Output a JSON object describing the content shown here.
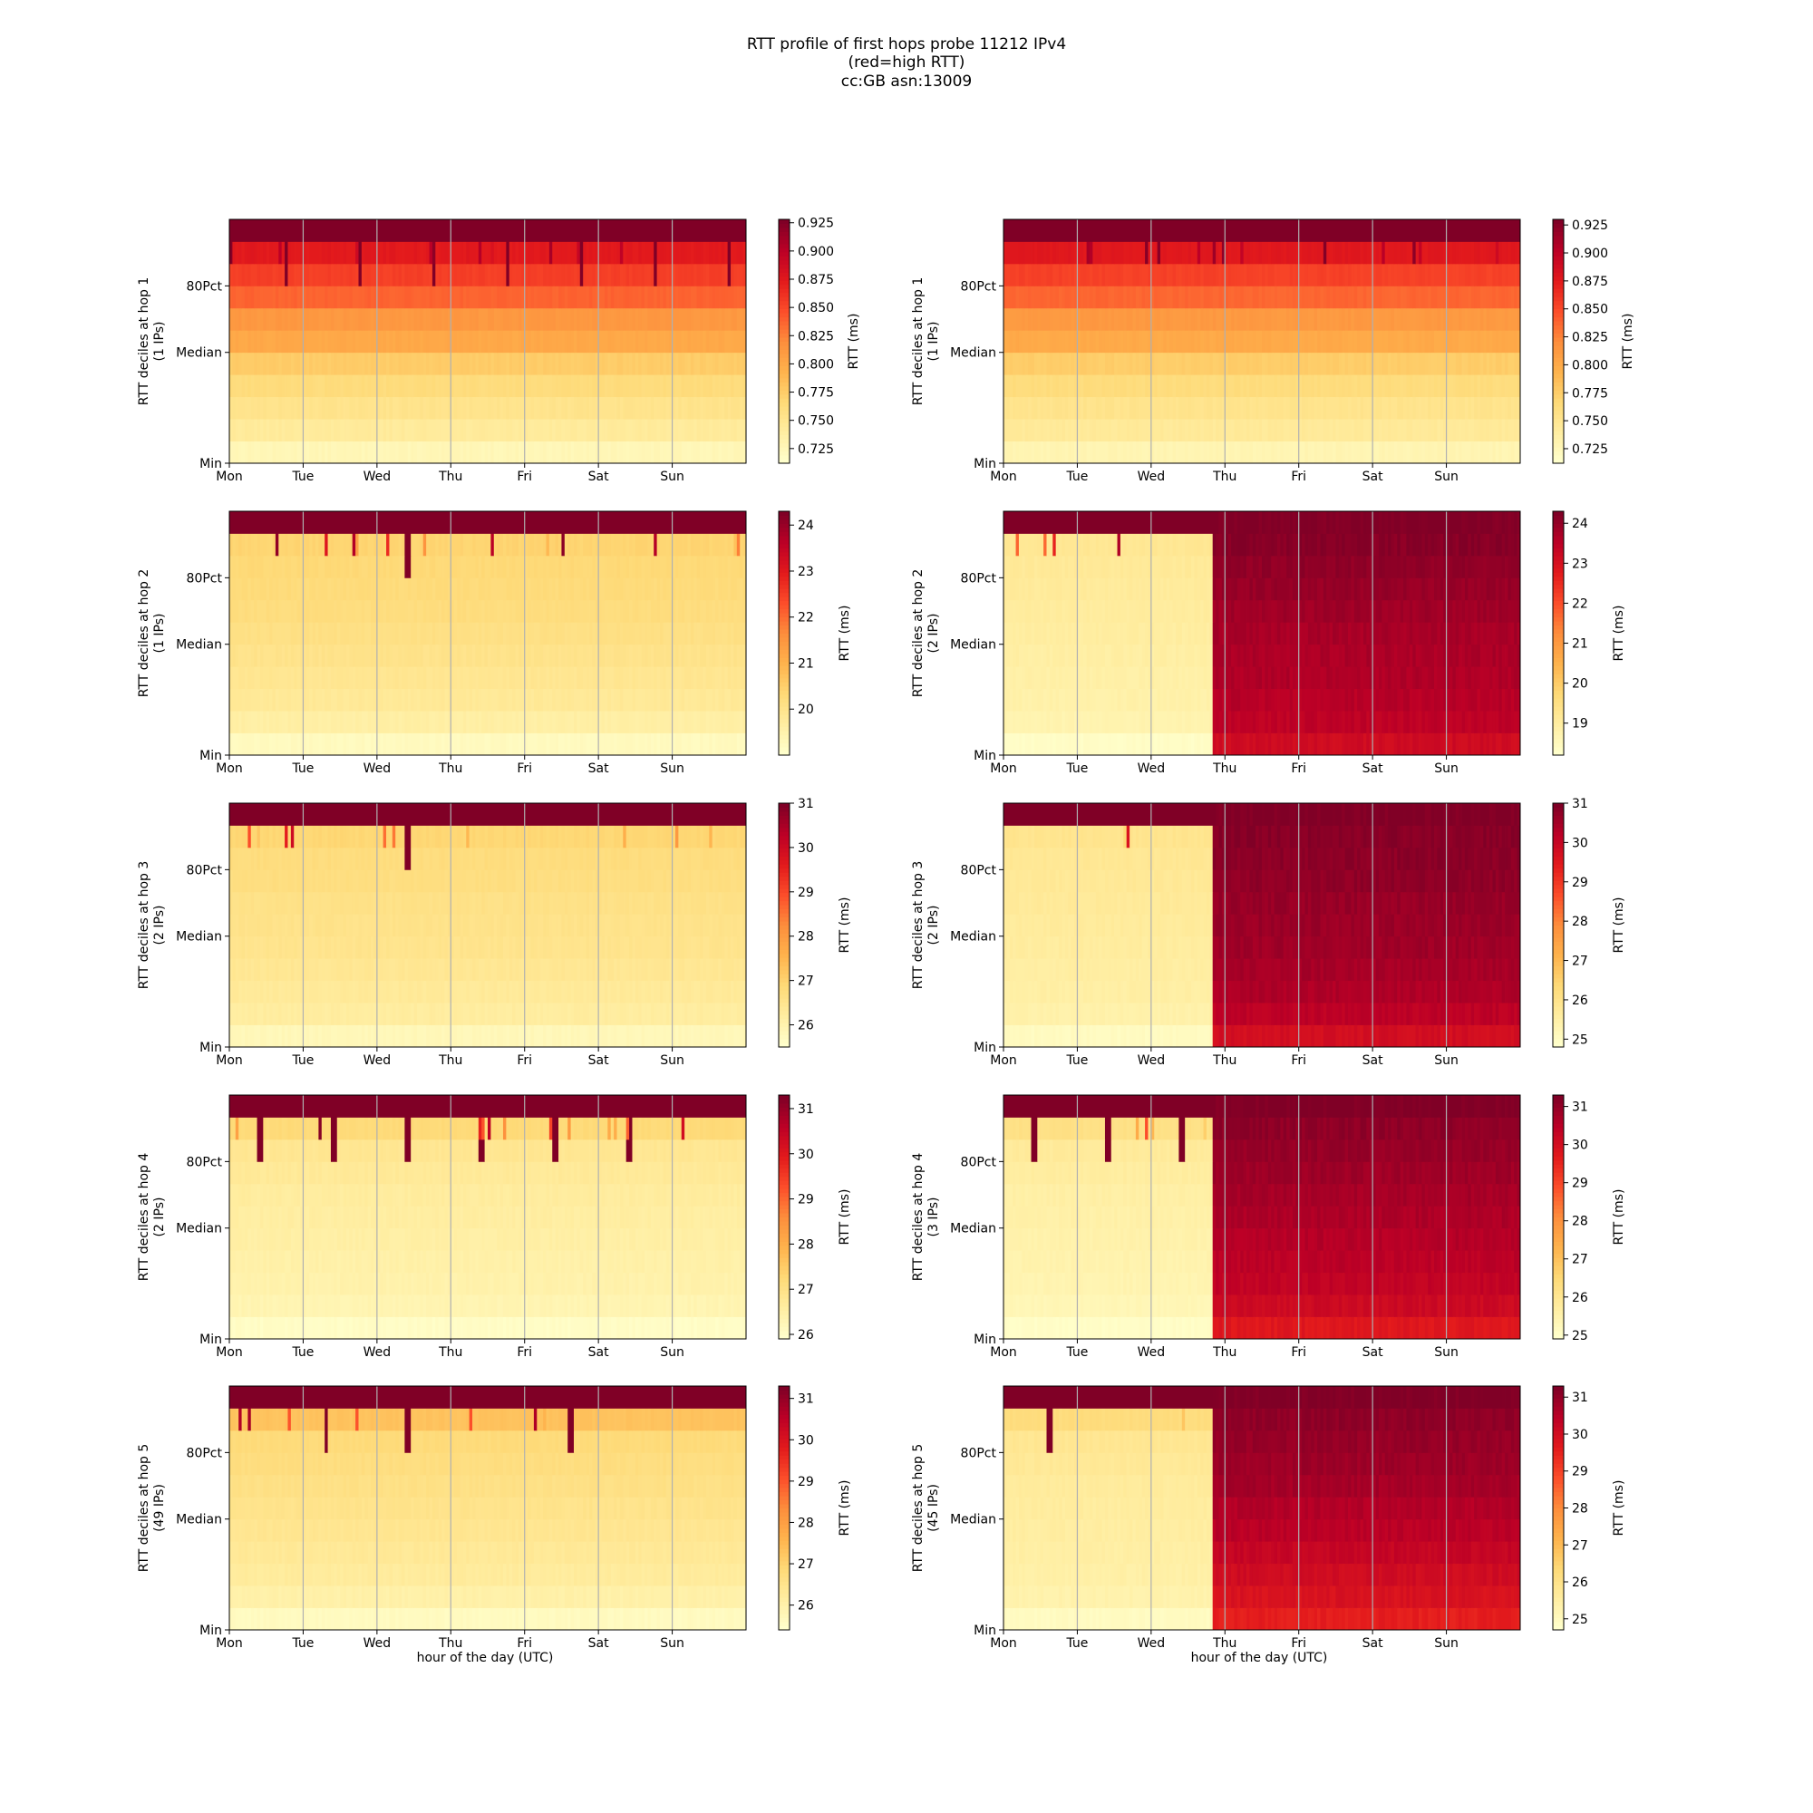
{
  "figure": {
    "title_lines": [
      "RTT profile of first hops probe 11212 IPv4",
      "(red=high RTT)",
      "cc:GB asn:13009"
    ],
    "xlabel": "hour of the day (UTC)",
    "colorbar_label": "RTT (ms)",
    "colormap": "YlOrRd",
    "colors": {
      "low": "#ffffcc",
      "mid": "#fd8d3c",
      "high": "#800026",
      "grid": "#b0b0b0"
    }
  },
  "chart_data": [
    {
      "type": "heatmap",
      "id": "left-hop1",
      "hop": 1,
      "ylabel": "RTT deciles at hop 1",
      "ylabel2": "(1 IPs)",
      "x_ticks": [
        "Mon",
        "Tue",
        "Wed",
        "Thu",
        "Fri",
        "Sat",
        "Sun"
      ],
      "y_ticks": [
        "Min",
        "Median",
        "80Pct"
      ],
      "colorbar_ticks": [
        "0.725",
        "0.750",
        "0.775",
        "0.800",
        "0.825",
        "0.850",
        "0.875",
        "0.900",
        "0.925"
      ],
      "colorbar_range": [
        0.712,
        0.928
      ],
      "decile_rtt_ms": [
        0.725,
        0.742,
        0.752,
        0.762,
        0.775,
        0.8,
        0.812,
        0.838,
        0.855,
        0.875,
        0.928
      ],
      "shift": null,
      "shift_day": null,
      "spike_days": [
        0.75,
        1.75,
        2.75,
        3.75,
        4.75,
        5.75,
        6.75
      ]
    },
    {
      "type": "heatmap",
      "id": "right-hop1",
      "hop": 1,
      "ylabel": "RTT deciles at hop 1",
      "ylabel2": "(1 IPs)",
      "x_ticks": [
        "Mon",
        "Tue",
        "Wed",
        "Thu",
        "Fri",
        "Sat",
        "Sun"
      ],
      "y_ticks": [
        "Min",
        "Median",
        "80Pct"
      ],
      "colorbar_ticks": [
        "0.725",
        "0.750",
        "0.775",
        "0.800",
        "0.825",
        "0.850",
        "0.875",
        "0.900",
        "0.925"
      ],
      "colorbar_range": [
        0.712,
        0.93
      ],
      "decile_rtt_ms": [
        0.728,
        0.744,
        0.752,
        0.762,
        0.775,
        0.8,
        0.812,
        0.838,
        0.855,
        0.878,
        0.93
      ],
      "shift": null,
      "shift_day": null,
      "spike_days": []
    },
    {
      "type": "heatmap",
      "id": "left-hop2",
      "hop": 2,
      "ylabel": "RTT deciles at hop 2",
      "ylabel2": "(1 IPs)",
      "x_ticks": [
        "Mon",
        "Tue",
        "Wed",
        "Thu",
        "Fri",
        "Sat",
        "Sun"
      ],
      "y_ticks": [
        "Min",
        "Median",
        "80Pct"
      ],
      "colorbar_ticks": [
        "20",
        "21",
        "22",
        "23",
        "24"
      ],
      "colorbar_range": [
        19.0,
        24.3
      ],
      "decile_rtt_ms": [
        19.2,
        19.6,
        19.8,
        19.9,
        20.0,
        20.1,
        20.2,
        20.25,
        20.3,
        20.4,
        24.3
      ],
      "shift": null,
      "shift_day": null,
      "spike_days": [
        2.4
      ]
    },
    {
      "type": "heatmap",
      "id": "right-hop2",
      "hop": 2,
      "ylabel": "RTT deciles at hop 2",
      "ylabel2": "(2 IPs)",
      "x_ticks": [
        "Mon",
        "Tue",
        "Wed",
        "Thu",
        "Fri",
        "Sat",
        "Sun"
      ],
      "y_ticks": [
        "Min",
        "Median",
        "80Pct"
      ],
      "colorbar_ticks": [
        "19",
        "20",
        "21",
        "22",
        "23",
        "24"
      ],
      "colorbar_range": [
        18.2,
        24.3
      ],
      "decile_rtt_ms": [
        18.3,
        18.7,
        18.8,
        18.85,
        18.9,
        18.95,
        19.0,
        19.05,
        19.1,
        19.2,
        24.3
      ],
      "shift": {
        "values_ms": [
          23.2,
          23.5,
          23.6,
          23.7,
          23.75,
          23.8,
          23.9,
          24.0,
          24.1,
          24.2,
          24.3
        ]
      },
      "shift_day": 2.8,
      "spike_days": []
    },
    {
      "type": "heatmap",
      "id": "left-hop3",
      "hop": 3,
      "ylabel": "RTT deciles at hop 3",
      "ylabel2": "(2 IPs)",
      "x_ticks": [
        "Mon",
        "Tue",
        "Wed",
        "Thu",
        "Fri",
        "Sat",
        "Sun"
      ],
      "y_ticks": [
        "Min",
        "Median",
        "80Pct"
      ],
      "colorbar_ticks": [
        "26",
        "27",
        "28",
        "29",
        "30",
        "31"
      ],
      "colorbar_range": [
        25.5,
        31.0
      ],
      "decile_rtt_ms": [
        25.8,
        26.2,
        26.3,
        26.4,
        26.5,
        26.55,
        26.6,
        26.7,
        26.75,
        26.9,
        31.0
      ],
      "shift": null,
      "shift_day": null,
      "spike_days": [
        2.4
      ]
    },
    {
      "type": "heatmap",
      "id": "right-hop3",
      "hop": 3,
      "ylabel": "RTT deciles at hop 3",
      "ylabel2": "(2 IPs)",
      "x_ticks": [
        "Mon",
        "Tue",
        "Wed",
        "Thu",
        "Fri",
        "Sat",
        "Sun"
      ],
      "y_ticks": [
        "Min",
        "Median",
        "80Pct"
      ],
      "colorbar_ticks": [
        "25",
        "26",
        "27",
        "28",
        "29",
        "30",
        "31"
      ],
      "colorbar_range": [
        24.8,
        31.0
      ],
      "decile_rtt_ms": [
        25.0,
        25.4,
        25.5,
        25.55,
        25.6,
        25.65,
        25.7,
        25.75,
        25.8,
        25.9,
        31.0
      ],
      "shift": {
        "values_ms": [
          29.8,
          30.2,
          30.4,
          30.5,
          30.6,
          30.65,
          30.7,
          30.8,
          30.85,
          30.9,
          31.0
        ]
      },
      "shift_day": 2.8,
      "spike_days": []
    },
    {
      "type": "heatmap",
      "id": "left-hop4",
      "hop": 4,
      "ylabel": "RTT deciles at hop 4",
      "ylabel2": "(2 IPs)",
      "x_ticks": [
        "Mon",
        "Tue",
        "Wed",
        "Thu",
        "Fri",
        "Sat",
        "Sun"
      ],
      "y_ticks": [
        "Min",
        "Median",
        "80Pct"
      ],
      "colorbar_ticks": [
        "26",
        "27",
        "28",
        "29",
        "30",
        "31"
      ],
      "colorbar_range": [
        25.9,
        31.3
      ],
      "decile_rtt_ms": [
        26.0,
        26.3,
        26.4,
        26.45,
        26.5,
        26.55,
        26.6,
        26.7,
        26.8,
        27.2,
        31.3
      ],
      "shift": null,
      "shift_day": null,
      "spike_days": [
        0.4,
        1.4,
        2.4,
        3.4,
        4.4,
        5.4
      ]
    },
    {
      "type": "heatmap",
      "id": "right-hop4",
      "hop": 4,
      "ylabel": "RTT deciles at hop 4",
      "ylabel2": "(3 IPs)",
      "x_ticks": [
        "Mon",
        "Tue",
        "Wed",
        "Thu",
        "Fri",
        "Sat",
        "Sun"
      ],
      "y_ticks": [
        "Min",
        "Median",
        "80Pct"
      ],
      "colorbar_ticks": [
        "25",
        "26",
        "27",
        "28",
        "29",
        "30",
        "31"
      ],
      "colorbar_range": [
        24.9,
        31.3
      ],
      "decile_rtt_ms": [
        25.0,
        25.3,
        25.4,
        25.45,
        25.5,
        25.55,
        25.6,
        25.7,
        25.8,
        26.2,
        31.3
      ],
      "shift": {
        "values_ms": [
          29.8,
          30.2,
          30.4,
          30.5,
          30.6,
          30.7,
          30.8,
          30.9,
          31.0,
          31.1,
          31.3
        ]
      },
      "shift_day": 2.8,
      "spike_days": [
        0.4,
        1.4,
        2.4
      ]
    },
    {
      "type": "heatmap",
      "id": "left-hop5",
      "hop": 5,
      "ylabel": "RTT deciles at hop 5",
      "ylabel2": "(49 IPs)",
      "x_ticks": [
        "Mon",
        "Tue",
        "Wed",
        "Thu",
        "Fri",
        "Sat",
        "Sun"
      ],
      "y_ticks": [
        "Min",
        "Median",
        "80Pct"
      ],
      "colorbar_ticks": [
        "26",
        "27",
        "28",
        "29",
        "30",
        "31"
      ],
      "colorbar_range": [
        25.4,
        31.3
      ],
      "decile_rtt_ms": [
        25.6,
        26.0,
        26.2,
        26.3,
        26.4,
        26.5,
        26.6,
        26.7,
        26.8,
        27.3,
        31.3
      ],
      "shift": null,
      "shift_day": null,
      "spike_days": [
        1.3,
        2.4,
        4.6
      ]
    },
    {
      "type": "heatmap",
      "id": "right-hop5",
      "hop": 5,
      "ylabel": "RTT deciles at hop 5",
      "ylabel2": "(45 IPs)",
      "x_ticks": [
        "Mon",
        "Tue",
        "Wed",
        "Thu",
        "Fri",
        "Sat",
        "Sun"
      ],
      "y_ticks": [
        "Min",
        "Median",
        "80Pct"
      ],
      "colorbar_ticks": [
        "25",
        "26",
        "27",
        "28",
        "29",
        "30",
        "31"
      ],
      "colorbar_range": [
        24.7,
        31.3
      ],
      "decile_rtt_ms": [
        24.9,
        25.3,
        25.4,
        25.45,
        25.5,
        25.55,
        25.6,
        25.7,
        25.8,
        26.2,
        31.3
      ],
      "shift": {
        "values_ms": [
          29.6,
          29.9,
          30.1,
          30.3,
          30.5,
          30.6,
          30.8,
          30.9,
          31.0,
          31.1,
          31.3
        ]
      },
      "shift_day": 2.8,
      "spike_days": [
        0.6
      ]
    }
  ]
}
